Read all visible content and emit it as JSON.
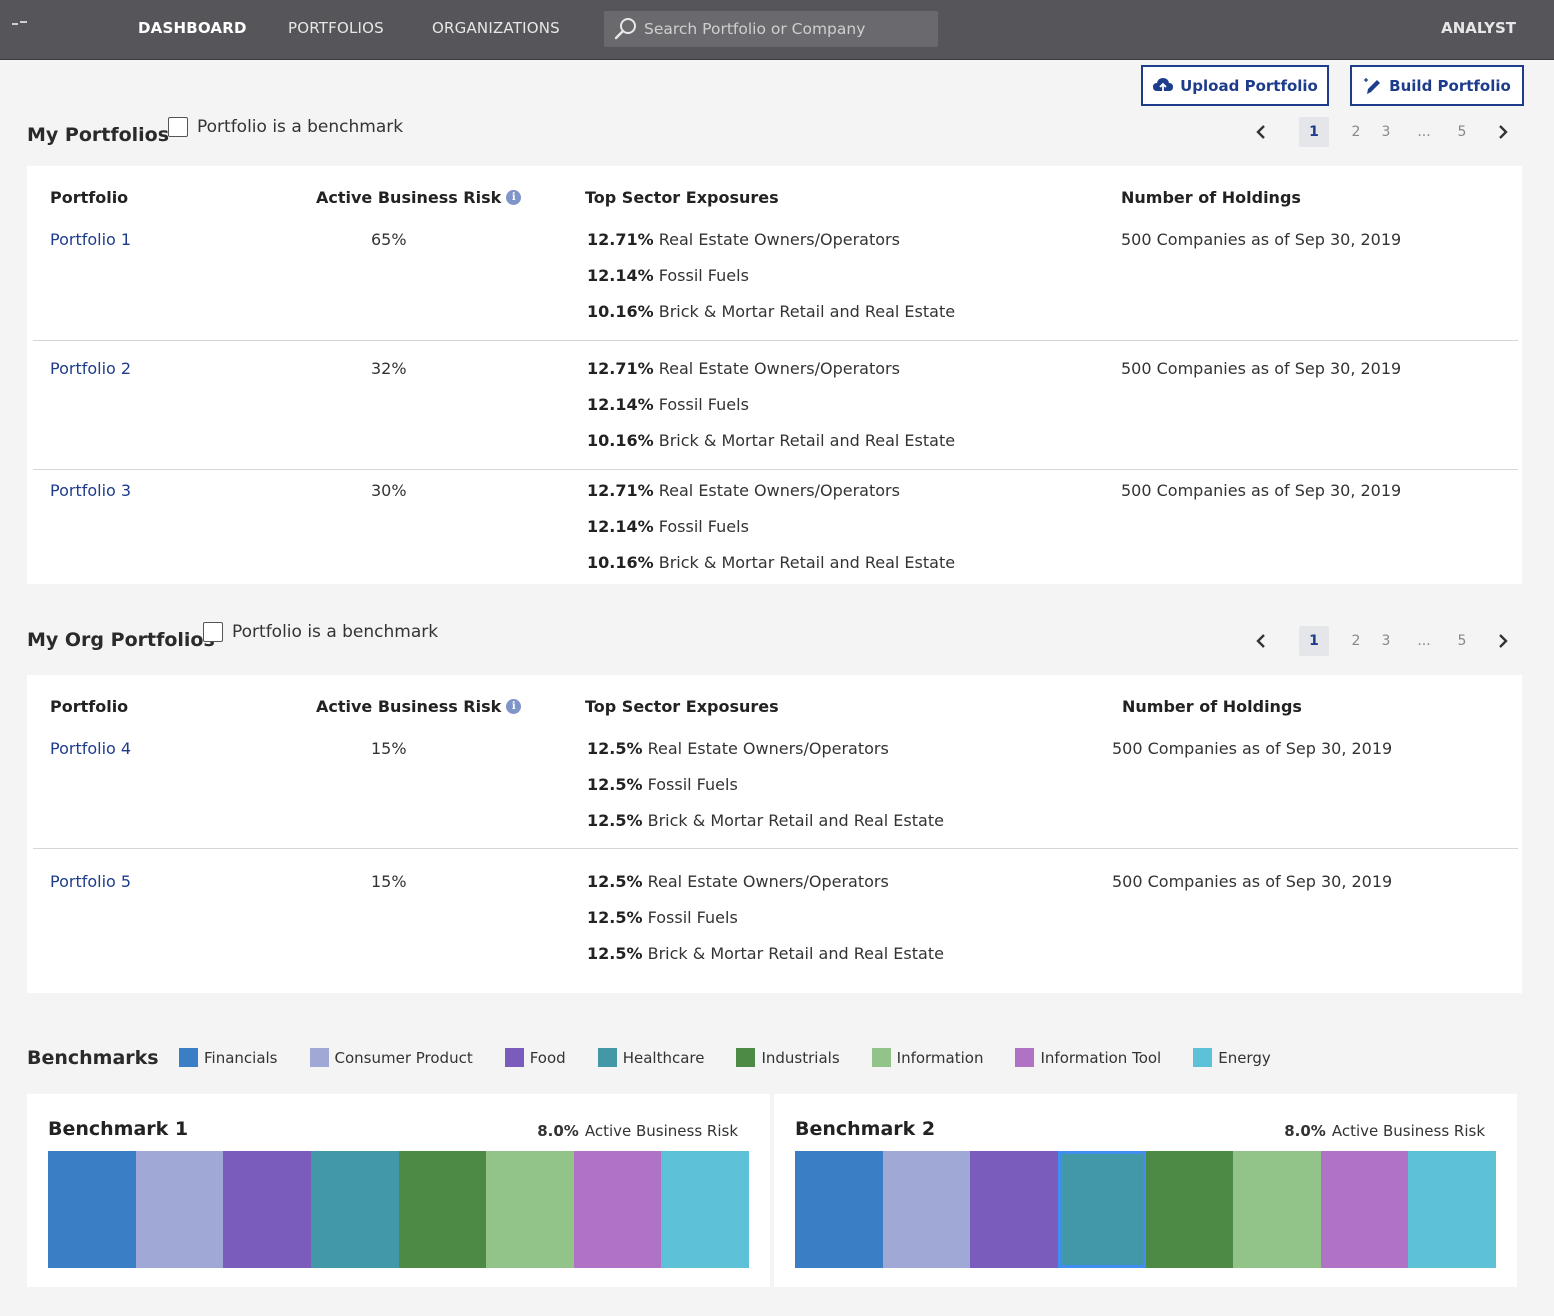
{
  "colors": {
    "financials": "#3a7ec6",
    "consumer_product": "#a0a8d6",
    "food": "#7a5cbd",
    "healthcare": "#4398a7",
    "industrials": "#4c8a45",
    "information": "#92c489",
    "information_tool": "#b072c4",
    "energy": "#5dc2d8",
    "accent": "#1e3c8c"
  },
  "nav": {
    "items": [
      "DASHBOARD",
      "PORTFOLIOS",
      "ORGANIZATIONS"
    ],
    "search_placeholder": "Search Portfolio or Company",
    "role": "ANALYST"
  },
  "actions": {
    "upload": "Upload Portfolio",
    "build": "Build Portfolio"
  },
  "my_portfolios": {
    "title": "My Portfolios",
    "benchmark_label": "Portfolio is a benchmark",
    "pager": {
      "pages": [
        "1",
        "2",
        "3",
        "...",
        "5"
      ],
      "current": "1"
    },
    "columns": [
      "Portfolio",
      "Active Business Risk",
      "Top Sector Exposures",
      "Number of Holdings"
    ],
    "rows": [
      {
        "name": "Portfolio 1",
        "risk": "65%",
        "sectors": [
          {
            "pct": "12.71%",
            "label": "Real Estate Owners/Operators"
          },
          {
            "pct": "12.14%",
            "label": "Fossil Fuels"
          },
          {
            "pct": "10.16%",
            "label": "Brick & Mortar Retail and Real Estate"
          }
        ],
        "holdings": "500 Companies as of Sep 30, 2019"
      },
      {
        "name": "Portfolio 2",
        "risk": "32%",
        "sectors": [
          {
            "pct": "12.71%",
            "label": "Real Estate Owners/Operators"
          },
          {
            "pct": "12.14%",
            "label": "Fossil Fuels"
          },
          {
            "pct": "10.16%",
            "label": "Brick & Mortar Retail and Real Estate"
          }
        ],
        "holdings": "500 Companies as of Sep 30, 2019"
      },
      {
        "name": "Portfolio 3",
        "risk": "30%",
        "sectors": [
          {
            "pct": "12.71%",
            "label": "Real Estate Owners/Operators"
          },
          {
            "pct": "12.14%",
            "label": "Fossil Fuels"
          },
          {
            "pct": "10.16%",
            "label": "Brick & Mortar Retail and Real Estate"
          }
        ],
        "holdings": "500 Companies as of Sep 30, 2019"
      }
    ]
  },
  "org_portfolios": {
    "title": "My Org Portfolios",
    "benchmark_label": "Portfolio is a benchmark",
    "pager": {
      "pages": [
        "1",
        "2",
        "3",
        "...",
        "5"
      ],
      "current": "1"
    },
    "columns": [
      "Portfolio",
      "Active Business Risk",
      "Top Sector Exposures",
      "Number of Holdings"
    ],
    "rows": [
      {
        "name": "Portfolio 4",
        "risk": "15%",
        "sectors": [
          {
            "pct": "12.5%",
            "label": "Real Estate Owners/Operators"
          },
          {
            "pct": "12.5%",
            "label": "Fossil Fuels"
          },
          {
            "pct": "12.5%",
            "label": "Brick & Mortar Retail and Real Estate"
          }
        ],
        "holdings": "500 Companies as of Sep 30, 2019"
      },
      {
        "name": "Portfolio 5",
        "risk": "15%",
        "sectors": [
          {
            "pct": "12.5%",
            "label": "Real Estate Owners/Operators"
          },
          {
            "pct": "12.5%",
            "label": "Fossil Fuels"
          },
          {
            "pct": "12.5%",
            "label": "Brick & Mortar Retail and Real Estate"
          }
        ],
        "holdings": "500 Companies as of Sep 30, 2019"
      }
    ]
  },
  "benchmarks": {
    "title": "Benchmarks",
    "legend": [
      {
        "label": "Financials",
        "color": "#3a7ec6"
      },
      {
        "label": "Consumer Product",
        "color": "#a0a8d6"
      },
      {
        "label": "Food",
        "color": "#7a5cbd"
      },
      {
        "label": "Healthcare",
        "color": "#4398a7"
      },
      {
        "label": "Industrials",
        "color": "#4c8a45"
      },
      {
        "label": "Information",
        "color": "#92c489"
      },
      {
        "label": "Information Tool",
        "color": "#b072c4"
      },
      {
        "label": "Energy",
        "color": "#5dc2d8"
      }
    ],
    "cards": [
      {
        "name": "Benchmark 1",
        "risk_value": "8.0%",
        "risk_label": "Active Business Risk",
        "selected_segment": null
      },
      {
        "name": "Benchmark 2",
        "risk_value": "8.0%",
        "risk_label": "Active Business Risk",
        "selected_segment": "Healthcare"
      }
    ]
  }
}
